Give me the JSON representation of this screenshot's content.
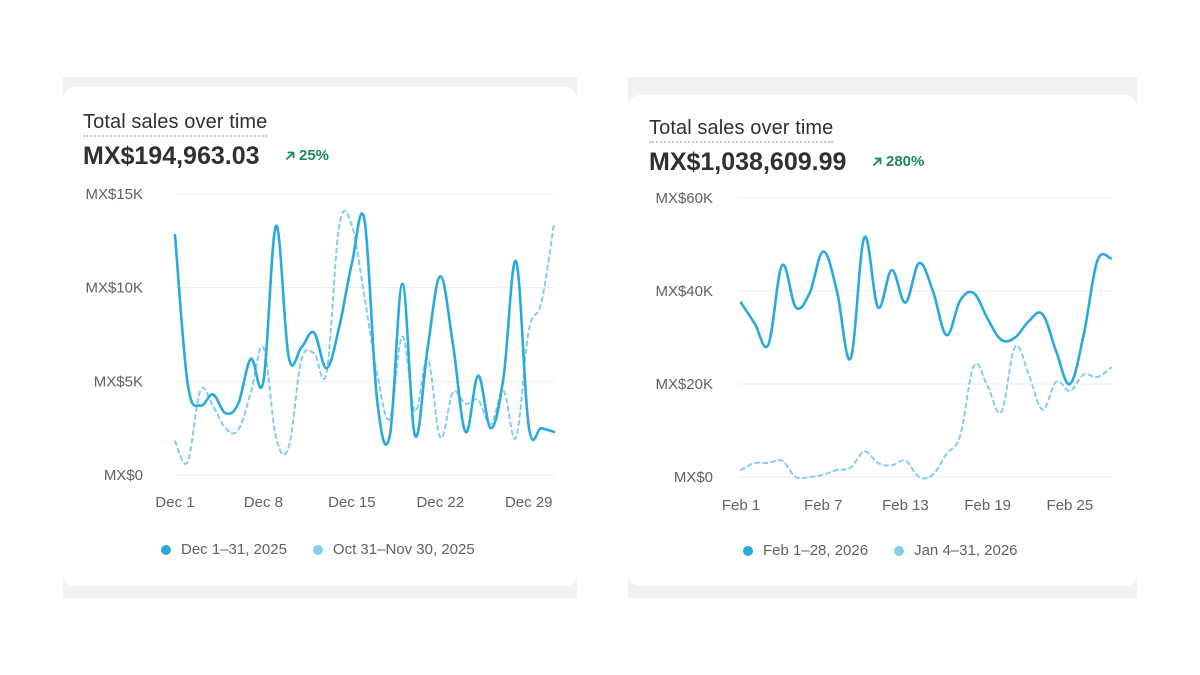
{
  "colors": {
    "primary": "#2aa9dc",
    "comparison": "#86ccee",
    "positive": "#1a8a55",
    "grid": "#ebebeb"
  },
  "charts": [
    {
      "title": "Total sales over time",
      "value": "MX$194,963.03",
      "change": "25%",
      "change_icon": "arrow-up-right-icon",
      "legend": [
        "Dec 1–31, 2025",
        "Oct 31–Nov 30, 2025"
      ]
    },
    {
      "title": "Total sales over time",
      "value": "MX$1,038,609.99",
      "change": "280%",
      "change_icon": "arrow-up-right-icon",
      "legend": [
        "Feb 1–28, 2026",
        "Jan 4–31, 2026"
      ]
    }
  ],
  "chart_data": [
    {
      "type": "line",
      "title": "Total sales over time",
      "x_ticks": [
        "Dec 1",
        "Dec 8",
        "Dec 15",
        "Dec 22",
        "Dec 29"
      ],
      "x_tick_days": [
        1,
        8,
        15,
        22,
        29
      ],
      "x_range": [
        1,
        31
      ],
      "y_ticks": [
        "MX$0",
        "MX$5K",
        "MX$10K",
        "MX$15K"
      ],
      "y_tick_values": [
        0,
        5000,
        10000,
        15000
      ],
      "ylim": [
        0,
        15000
      ],
      "grid": true,
      "legend_position": "bottom",
      "series": [
        {
          "name": "Dec 1–31, 2025",
          "style": "solid",
          "x": [
            1,
            2,
            3,
            4,
            5,
            6,
            7,
            8,
            9,
            10,
            11,
            12,
            13,
            14,
            15,
            16,
            17,
            18,
            19,
            20,
            21,
            22,
            23,
            24,
            25,
            26,
            27,
            28,
            29,
            30,
            31
          ],
          "values": [
            12800,
            4900,
            3700,
            4300,
            3300,
            3800,
            6200,
            5000,
            13300,
            6300,
            6800,
            7600,
            5700,
            7900,
            11300,
            13600,
            4000,
            2100,
            10200,
            2100,
            6800,
            10600,
            7000,
            2300,
            5300,
            2500,
            5200,
            11400,
            2600,
            2500,
            2300
          ]
        },
        {
          "name": "Oct 31–Nov 30, 2025",
          "style": "dashed",
          "x": [
            1,
            2,
            3,
            4,
            5,
            6,
            7,
            8,
            9,
            10,
            11,
            12,
            13,
            14,
            15,
            16,
            17,
            18,
            19,
            20,
            21,
            22,
            23,
            24,
            25,
            26,
            27,
            28,
            29,
            30,
            31
          ],
          "values": [
            1800,
            700,
            4500,
            3700,
            2500,
            2400,
            4400,
            6800,
            2000,
            1500,
            6100,
            6500,
            5500,
            13300,
            13300,
            9500,
            5400,
            3000,
            7400,
            3400,
            6200,
            2000,
            4400,
            3800,
            4000,
            2700,
            4500,
            2000,
            7700,
            9200,
            13400
          ]
        }
      ]
    },
    {
      "type": "line",
      "title": "Total sales over time",
      "x_ticks": [
        "Feb 1",
        "Feb 7",
        "Feb 13",
        "Feb 19",
        "Feb 25"
      ],
      "x_tick_days": [
        1,
        7,
        13,
        19,
        25
      ],
      "x_range": [
        1,
        28
      ],
      "y_ticks": [
        "MX$0",
        "MX$20K",
        "MX$40K",
        "MX$60K"
      ],
      "y_tick_values": [
        0,
        20000,
        40000,
        60000
      ],
      "ylim": [
        0,
        60000
      ],
      "grid": true,
      "legend_position": "bottom",
      "series": [
        {
          "name": "Feb 1–28, 2026",
          "style": "solid",
          "x": [
            1,
            2,
            3,
            4,
            5,
            6,
            7,
            8,
            9,
            10,
            11,
            12,
            13,
            14,
            15,
            16,
            17,
            18,
            19,
            20,
            21,
            22,
            23,
            24,
            25,
            26,
            27,
            28
          ],
          "values": [
            37500,
            33000,
            28500,
            45500,
            36500,
            39500,
            48500,
            40000,
            25500,
            51500,
            36500,
            44500,
            37500,
            46000,
            40000,
            30500,
            38000,
            39500,
            34000,
            29500,
            30000,
            33500,
            35000,
            27000,
            20000,
            30500,
            46500,
            47000
          ]
        },
        {
          "name": "Jan 4–31, 2026",
          "style": "dashed",
          "x": [
            1,
            2,
            3,
            4,
            5,
            6,
            7,
            8,
            9,
            10,
            11,
            12,
            13,
            14,
            15,
            16,
            17,
            18,
            19,
            20,
            21,
            22,
            23,
            24,
            25,
            26,
            27,
            28
          ],
          "values": [
            1500,
            3000,
            3000,
            3500,
            0,
            0,
            500,
            1500,
            2000,
            5500,
            3000,
            2500,
            3500,
            0,
            500,
            5000,
            9000,
            24000,
            19500,
            14000,
            28000,
            22000,
            14500,
            20500,
            18500,
            22000,
            21500,
            23500
          ]
        }
      ]
    }
  ]
}
